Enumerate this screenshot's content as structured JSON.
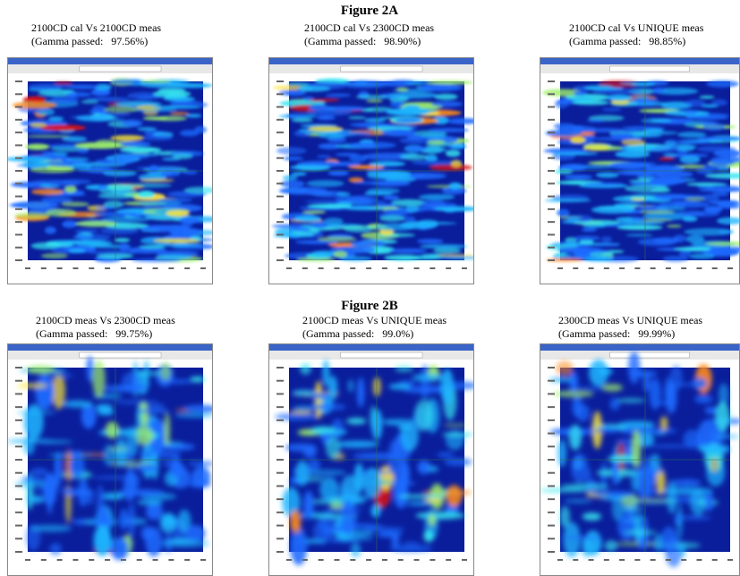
{
  "figure_a": {
    "title": "Figure 2A",
    "panels": [
      {
        "caption": "2100CD cal Vs 2100CD meas",
        "gamma": "(Gamma passed:   97.56%)"
      },
      {
        "caption": "2100CD cal Vs 2300CD meas",
        "gamma": "(Gamma passed:   98.90%)"
      },
      {
        "caption": "2100CD cal Vs UNIQUE meas",
        "gamma": "(Gamma passed:   98.85%)"
      }
    ]
  },
  "figure_b": {
    "title": "Figure 2B",
    "panels": [
      {
        "caption": "2100CD meas Vs 2300CD meas",
        "gamma": "(Gamma passed:   99.75%)"
      },
      {
        "caption": "2100CD meas Vs UNIQUE meas",
        "gamma": "(Gamma passed:   99.0%)"
      },
      {
        "caption": "2300CD meas Vs UNIQUE meas",
        "gamma": "(Gamma passed:   99.99%)"
      }
    ]
  }
}
